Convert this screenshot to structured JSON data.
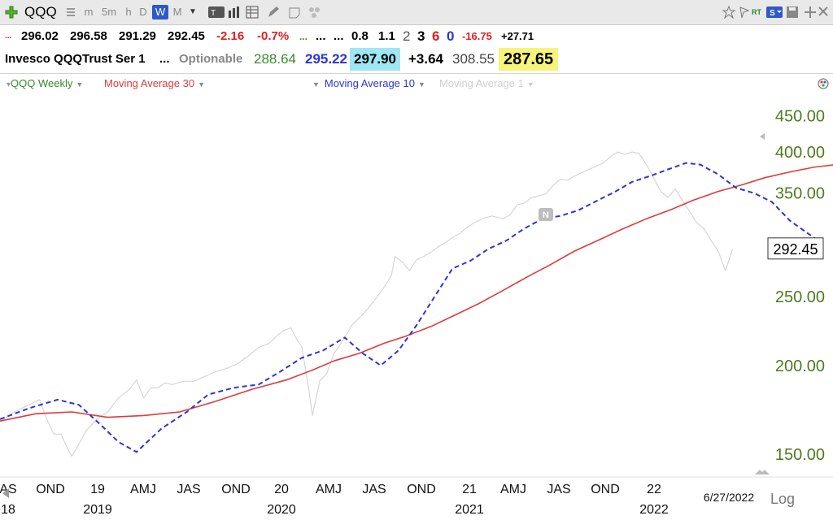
{
  "toolbar": {
    "symbol": "QQQ",
    "intervals": [
      "m",
      "5m",
      "h",
      "D",
      "W",
      "M"
    ],
    "active_interval": "W"
  },
  "quote_row1": {
    "ellipsis": "...",
    "open": "296.02",
    "high": "296.58",
    "low": "291.29",
    "close": "292.45",
    "change": "-2.16",
    "change_pct": "-0.7%",
    "dots_green": "...",
    "dots_a": "...",
    "dots_b": "...",
    "v1": "0.8",
    "v2": "1.1",
    "n2": "2",
    "n3": "3",
    "n6": "6",
    "n0": "0",
    "neg": "-16.75",
    "pos": "+27.71"
  },
  "quote_row2": {
    "name": "Invesco QQQTrust Ser 1",
    "ellipsis": "...",
    "optionable": "Optionable",
    "v_green": "288.64",
    "v_blue": "295.22",
    "v_cyan": "297.90",
    "v_change": "+3.64",
    "v_gray": "308.55",
    "v_yellow": "287.65"
  },
  "legend": {
    "series_label": "QQQ Weekly",
    "ma30_label": "Moving Average 30",
    "ma10_label": "Moving Average 10",
    "ma1_label": "Moving Average 1"
  },
  "colors": {
    "price": "#d6d6d6",
    "ma30": "#e03a3a",
    "ma10": "#2b35d6",
    "axis_text": "#4e7a1e"
  },
  "chart_data": {
    "type": "line",
    "scale": "log",
    "ylim": [
      140,
      480
    ],
    "y_ticks": [
      150,
      200,
      250,
      300,
      350,
      400,
      450
    ],
    "y_tick_labels": [
      "150.00",
      "200.00",
      "250.00",
      "",
      "350.00",
      "400.00",
      "450.00"
    ],
    "last_price_label": "292.45",
    "date_label": "6/27/2022",
    "scale_button": "Log",
    "event_marker": "N",
    "month_ticks": [
      "AS",
      "OND",
      "19",
      "AMJ",
      "JAS",
      "OND",
      "20",
      "AMJ",
      "JAS",
      "OND",
      "21",
      "AMJ",
      "JAS",
      "OND",
      "22"
    ],
    "year_labels": [
      "18",
      "2019",
      "2020",
      "2021",
      "2022"
    ],
    "x_range_weeks": [
      0,
      205
    ],
    "series": [
      {
        "name": "QQQ Weekly",
        "color": "#d6d6d6",
        "points": [
          [
            0,
            167
          ],
          [
            4,
            172
          ],
          [
            8,
            176
          ],
          [
            11,
            179
          ],
          [
            13,
            168
          ],
          [
            15,
            160
          ],
          [
            17,
            160
          ],
          [
            19,
            152
          ],
          [
            20,
            149
          ],
          [
            22,
            155
          ],
          [
            24,
            162
          ],
          [
            27,
            168
          ],
          [
            30,
            172
          ],
          [
            33,
            180
          ],
          [
            36,
            185
          ],
          [
            38,
            191
          ],
          [
            40,
            180
          ],
          [
            42,
            186
          ],
          [
            44,
            186
          ],
          [
            46,
            189
          ],
          [
            48,
            188
          ],
          [
            51,
            190
          ],
          [
            54,
            190
          ],
          [
            57,
            193
          ],
          [
            60,
            196
          ],
          [
            63,
            198
          ],
          [
            66,
            201
          ],
          [
            69,
            206
          ],
          [
            72,
            212
          ],
          [
            75,
            215
          ],
          [
            77,
            220
          ],
          [
            79,
            224
          ],
          [
            81,
            226
          ],
          [
            83,
            216
          ],
          [
            84,
            213
          ],
          [
            86,
            185
          ],
          [
            87,
            170
          ],
          [
            89,
            190
          ],
          [
            91,
            195
          ],
          [
            93,
            208
          ],
          [
            95,
            215
          ],
          [
            98,
            228
          ],
          [
            101,
            236
          ],
          [
            104,
            246
          ],
          [
            107,
            258
          ],
          [
            109,
            268
          ],
          [
            110,
            285
          ],
          [
            112,
            280
          ],
          [
            114,
            272
          ],
          [
            116,
            282
          ],
          [
            118,
            285
          ],
          [
            120,
            289
          ],
          [
            122,
            294
          ],
          [
            124,
            298
          ],
          [
            126,
            303
          ],
          [
            128,
            307
          ],
          [
            130,
            313
          ],
          [
            132,
            318
          ],
          [
            135,
            323
          ],
          [
            137,
            325
          ],
          [
            140,
            322
          ],
          [
            142,
            326
          ],
          [
            144,
            337
          ],
          [
            146,
            339
          ],
          [
            148,
            345
          ],
          [
            150,
            347
          ],
          [
            152,
            349
          ],
          [
            154,
            359
          ],
          [
            156,
            366
          ],
          [
            158,
            365
          ],
          [
            160,
            370
          ],
          [
            162,
            374
          ],
          [
            164,
            378
          ],
          [
            166,
            382
          ],
          [
            168,
            386
          ],
          [
            170,
            394
          ],
          [
            172,
            400
          ],
          [
            174,
            397
          ],
          [
            176,
            400
          ],
          [
            178,
            398
          ],
          [
            180,
            384
          ],
          [
            182,
            368
          ],
          [
            184,
            352
          ],
          [
            186,
            345
          ],
          [
            188,
            355
          ],
          [
            190,
            342
          ],
          [
            192,
            330
          ],
          [
            194,
            318
          ],
          [
            196,
            312
          ],
          [
            198,
            300
          ],
          [
            200,
            290
          ],
          [
            202,
            272
          ],
          [
            204,
            292
          ]
        ]
      },
      {
        "name": "Moving Average 30",
        "color": "#e03a3a",
        "points": [
          [
            0,
            167
          ],
          [
            10,
            171
          ],
          [
            20,
            172
          ],
          [
            30,
            169
          ],
          [
            40,
            170
          ],
          [
            50,
            172
          ],
          [
            60,
            178
          ],
          [
            70,
            185
          ],
          [
            80,
            191
          ],
          [
            87,
            197
          ],
          [
            93,
            203
          ],
          [
            100,
            208
          ],
          [
            107,
            215
          ],
          [
            113,
            220
          ],
          [
            120,
            227
          ],
          [
            127,
            236
          ],
          [
            133,
            244
          ],
          [
            140,
            255
          ],
          [
            147,
            267
          ],
          [
            153,
            277
          ],
          [
            160,
            290
          ],
          [
            167,
            301
          ],
          [
            173,
            311
          ],
          [
            180,
            322
          ],
          [
            187,
            332
          ],
          [
            193,
            342
          ],
          [
            200,
            352
          ],
          [
            207,
            360
          ],
          [
            213,
            368
          ],
          [
            220,
            375
          ],
          [
            227,
            381
          ],
          [
            233,
            384
          ],
          [
            240,
            386
          ],
          [
            247,
            384
          ],
          [
            253,
            378
          ],
          [
            260,
            366
          ],
          [
            266,
            348
          ]
        ]
      },
      {
        "name": "Moving Average 10",
        "color": "#2b35d6",
        "points": [
          [
            0,
            168
          ],
          [
            8,
            174
          ],
          [
            16,
            179
          ],
          [
            22,
            176
          ],
          [
            28,
            165
          ],
          [
            33,
            156
          ],
          [
            38,
            151
          ],
          [
            45,
            163
          ],
          [
            52,
            172
          ],
          [
            58,
            182
          ],
          [
            65,
            186
          ],
          [
            72,
            188
          ],
          [
            78,
            196
          ],
          [
            84,
            205
          ],
          [
            90,
            210
          ],
          [
            96,
            219
          ],
          [
            101,
            208
          ],
          [
            106,
            200
          ],
          [
            111,
            210
          ],
          [
            116,
            228
          ],
          [
            121,
            250
          ],
          [
            126,
            274
          ],
          [
            131,
            281
          ],
          [
            136,
            292
          ],
          [
            141,
            300
          ],
          [
            146,
            312
          ],
          [
            151,
            322
          ],
          [
            156,
            325
          ],
          [
            161,
            331
          ],
          [
            166,
            341
          ],
          [
            171,
            351
          ],
          [
            176,
            363
          ],
          [
            181,
            370
          ],
          [
            186,
            378
          ],
          [
            191,
            386
          ],
          [
            195,
            384
          ],
          [
            200,
            372
          ],
          [
            205,
            356
          ],
          [
            210,
            350
          ],
          [
            215,
            340
          ],
          [
            220,
            320
          ],
          [
            225,
            307
          ],
          [
            229,
            297
          ]
        ]
      }
    ]
  }
}
